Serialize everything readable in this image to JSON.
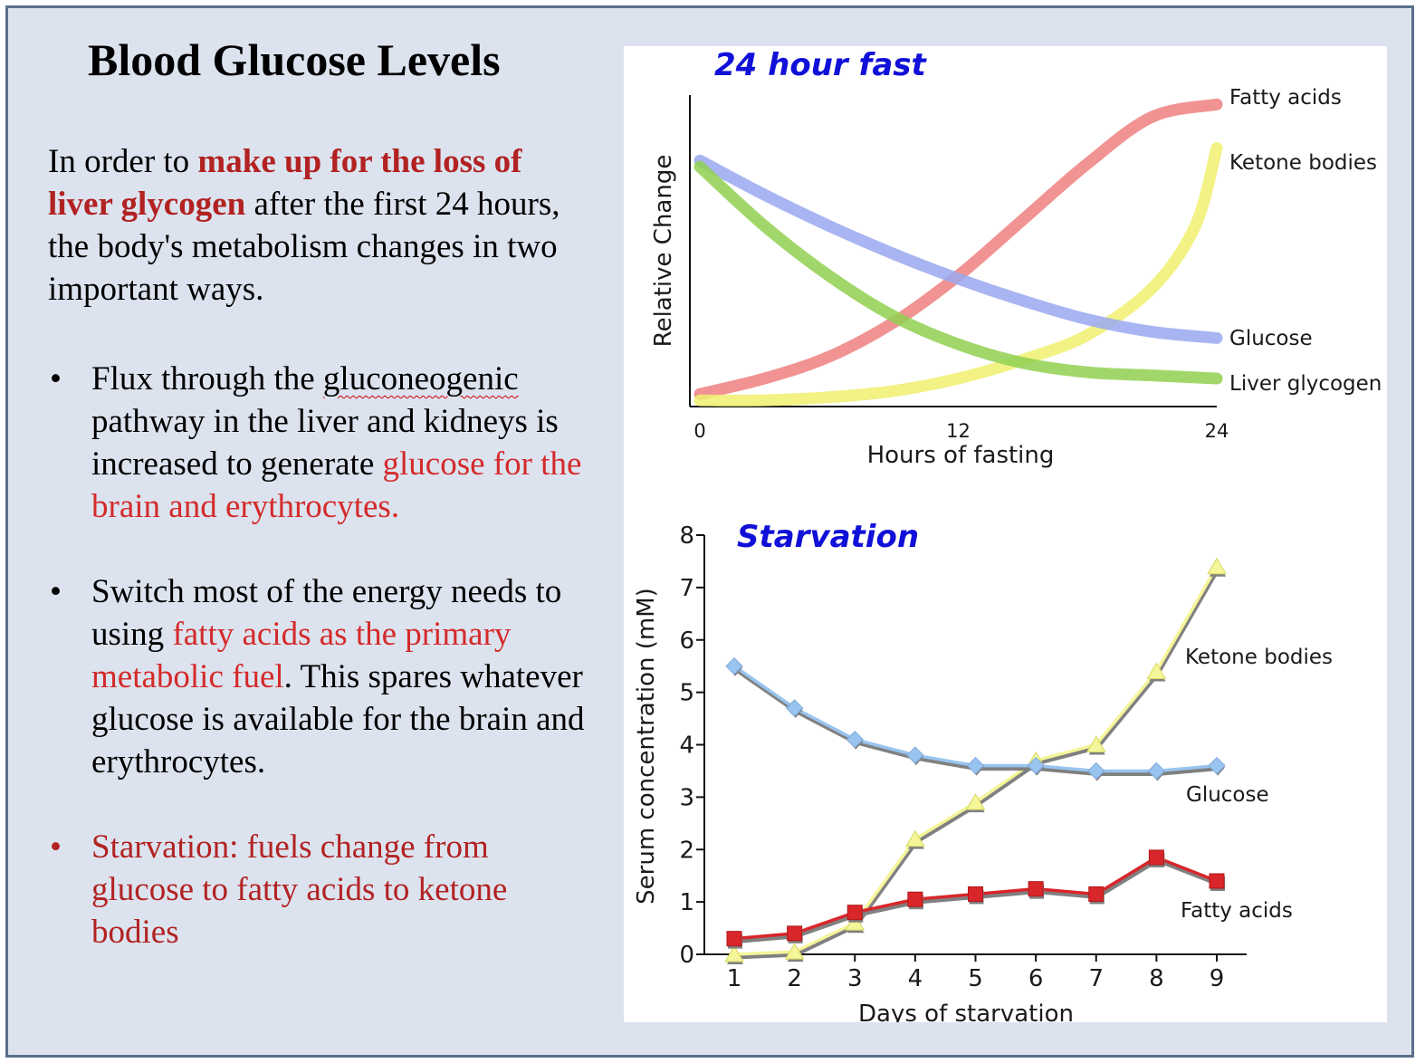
{
  "slide": {
    "title": "Blood Glucose Levels",
    "intro": {
      "part1": "In order to ",
      "highlight": "make up for the loss of liver glycogen",
      "part2": " after the first 24 hours, the body's metabolism changes in two important ways."
    },
    "bullet_char": "•",
    "bullets": [
      {
        "part1": "Flux through the ",
        "underlined": "gluconeogenic",
        "part2": " pathway in the liver and kidneys is increased to generate ",
        "highlight": "glucose for the brain and erythrocytes."
      },
      {
        "part1": "Switch most of the energy needs to using ",
        "highlight": "fatty acids as the primary metabolic fuel",
        "part2": ".  This spares whatever glucose is available for the brain and erythrocytes."
      },
      {
        "text": "Starvation: fuels change from glucose to fatty acids to ketone bodies"
      }
    ],
    "colors": {
      "background": "#dce3ee",
      "border": "#5a6f8a",
      "highlight_dark": "#b22222",
      "highlight_red": "#d42a2a"
    }
  },
  "chart_data": [
    {
      "type": "line",
      "title": "24 hour fast",
      "xlabel": "Hours of fasting",
      "ylabel": "Relative Change",
      "xlim": [
        0,
        24
      ],
      "x_ticks": [
        "0",
        "12",
        "24"
      ],
      "ylim": [
        0,
        1
      ],
      "y_ticks": false,
      "grid": false,
      "series": [
        {
          "name": "Fatty acids",
          "color": "#ee8080",
          "x": [
            0,
            3,
            6,
            9,
            12,
            15,
            18,
            21,
            24
          ],
          "values": [
            0.04,
            0.09,
            0.16,
            0.27,
            0.42,
            0.6,
            0.78,
            0.93,
            0.97
          ]
        },
        {
          "name": "Ketone bodies",
          "color": "#f0f070",
          "x": [
            0,
            3,
            6,
            9,
            12,
            15,
            18,
            21,
            23,
            24
          ],
          "values": [
            0.02,
            0.02,
            0.03,
            0.05,
            0.09,
            0.15,
            0.23,
            0.38,
            0.58,
            0.83
          ]
        },
        {
          "name": "Glucose",
          "color": "#9aa8f0",
          "x": [
            0,
            3,
            6,
            9,
            12,
            15,
            18,
            21,
            24
          ],
          "values": [
            0.79,
            0.68,
            0.58,
            0.49,
            0.41,
            0.34,
            0.28,
            0.24,
            0.22
          ]
        },
        {
          "name": "Liver glycogen",
          "color": "#90d050",
          "x": [
            0,
            3,
            6,
            9,
            12,
            15,
            18,
            21,
            24
          ],
          "values": [
            0.77,
            0.58,
            0.42,
            0.29,
            0.2,
            0.14,
            0.11,
            0.1,
            0.09
          ]
        }
      ]
    },
    {
      "type": "line",
      "title": "Starvation",
      "xlabel": "Days of starvation",
      "ylabel": "Serum concentration (mM)",
      "x": [
        1,
        2,
        3,
        4,
        5,
        6,
        7,
        8,
        9
      ],
      "x_ticks": [
        "1",
        "2",
        "3",
        "4",
        "5",
        "6",
        "7",
        "8",
        "9"
      ],
      "ylim": [
        0,
        8
      ],
      "y_ticks": [
        "0",
        "1",
        "2",
        "3",
        "4",
        "5",
        "6",
        "7",
        "8"
      ],
      "grid": false,
      "series": [
        {
          "name": "Glucose",
          "marker": "diamond",
          "color": "#99c4ef",
          "values": [
            5.5,
            4.7,
            4.1,
            3.8,
            3.6,
            3.6,
            3.5,
            3.5,
            3.6
          ]
        },
        {
          "name": "Ketone bodies",
          "marker": "triangle",
          "color": "#f5f59a",
          "values": [
            0.0,
            0.05,
            0.6,
            2.2,
            2.9,
            3.7,
            4.0,
            5.4,
            7.4
          ]
        },
        {
          "name": "Fatty acids",
          "marker": "square",
          "color": "#d8262a",
          "values": [
            0.3,
            0.4,
            0.8,
            1.05,
            1.15,
            1.25,
            1.15,
            1.85,
            1.4
          ]
        }
      ]
    }
  ]
}
